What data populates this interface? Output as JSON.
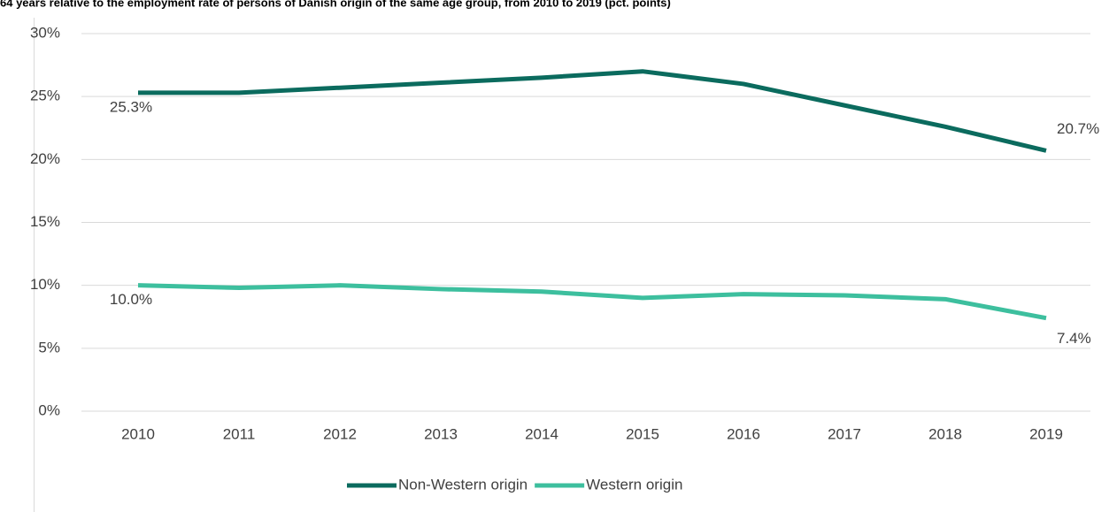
{
  "chart_data": {
    "type": "line",
    "title": "64 years relative to the employment rate of persons of Danish origin of the same age group, from 2010 to 2019 (pct. points)",
    "categories": [
      "2010",
      "2011",
      "2012",
      "2013",
      "2014",
      "2015",
      "2016",
      "2017",
      "2018",
      "2019"
    ],
    "series": [
      {
        "name": "Non-Western origin",
        "color": "#0b6b5e",
        "values": [
          25.3,
          25.3,
          25.7,
          26.1,
          26.5,
          27.0,
          26.0,
          24.3,
          22.6,
          20.7
        ],
        "value_labels": [
          "25.3%",
          null,
          null,
          null,
          null,
          null,
          null,
          null,
          null,
          "20.7%"
        ]
      },
      {
        "name": "Western origin",
        "color": "#3dbf9e",
        "values": [
          10.0,
          9.8,
          10.0,
          9.7,
          9.5,
          9.0,
          9.3,
          9.2,
          8.9,
          7.4
        ],
        "value_labels": [
          "10.0%",
          null,
          null,
          null,
          null,
          null,
          null,
          null,
          null,
          "7.4%"
        ]
      }
    ],
    "ylim": [
      0,
      30
    ],
    "yticks": [
      {
        "value": 0,
        "label": "0%"
      },
      {
        "value": 5,
        "label": "5%"
      },
      {
        "value": 10,
        "label": "10%"
      },
      {
        "value": 15,
        "label": "15%"
      },
      {
        "value": 20,
        "label": "20%"
      },
      {
        "value": 25,
        "label": "25%"
      },
      {
        "value": 30,
        "label": "30%"
      }
    ],
    "grid": true,
    "legend": "bottom"
  }
}
